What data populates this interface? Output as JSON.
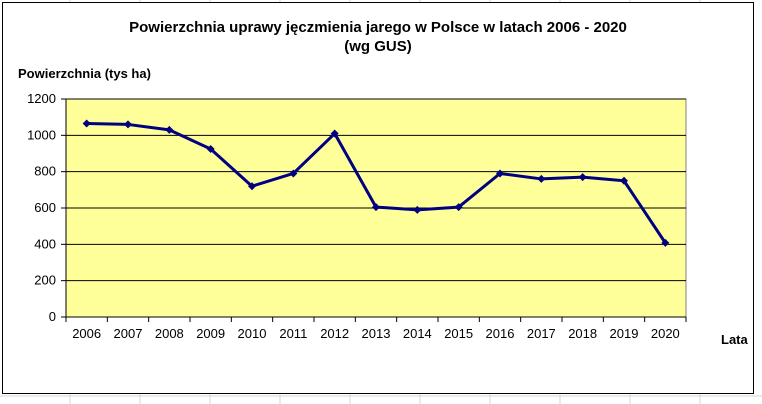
{
  "chart_data": {
    "type": "line",
    "title_line1": "Powierzchnia uprawy jęczmienia jarego w Polsce w latach 2006 - 2020",
    "title_line2": "(wg GUS)",
    "ylabel": "Powierzchnia (tys ha)",
    "xlabel": "Lata",
    "categories": [
      "2006",
      "2007",
      "2008",
      "2009",
      "2010",
      "2011",
      "2012",
      "2013",
      "2014",
      "2015",
      "2016",
      "2017",
      "2018",
      "2019",
      "2020"
    ],
    "series": [
      {
        "values": [
          1065,
          1060,
          1030,
          925,
          720,
          790,
          1010,
          605,
          590,
          605,
          790,
          760,
          770,
          750,
          408
        ]
      }
    ],
    "ylim": [
      0,
      1200
    ],
    "yticks": [
      0,
      200,
      400,
      600,
      800,
      1000,
      1200
    ],
    "grid": true,
    "legend": "none",
    "colors": {
      "plot_background": "#ffff99",
      "line": "#000080",
      "marker": "#000080",
      "gridline": "#000000"
    }
  }
}
